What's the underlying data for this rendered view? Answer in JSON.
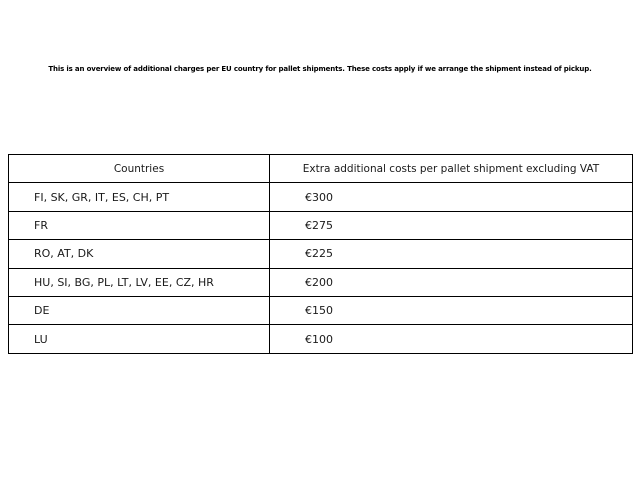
{
  "caption": "This is an overview of additional charges per EU country for pallet shipments. These costs apply if we arrange the shipment instead of pickup.",
  "table": {
    "headers": {
      "countries": "Countries",
      "cost": "Extra additional costs per pallet shipment excluding VAT"
    },
    "rows": [
      {
        "countries": "FI, SK, GR, IT, ES, CH, PT",
        "cost": "€300"
      },
      {
        "countries": "FR",
        "cost": "€275"
      },
      {
        "countries": "RO, AT, DK",
        "cost": "€225"
      },
      {
        "countries": "HU, SI, BG, PL, LT, LV, EE, CZ, HR",
        "cost": "€200"
      },
      {
        "countries": "DE",
        "cost": "€150"
      },
      {
        "countries": "LU",
        "cost": "€100"
      }
    ]
  },
  "colors": {
    "background": "#ffffff",
    "border": "#000000",
    "caption_text": "#000000",
    "table_text": "#1a1a1a"
  }
}
